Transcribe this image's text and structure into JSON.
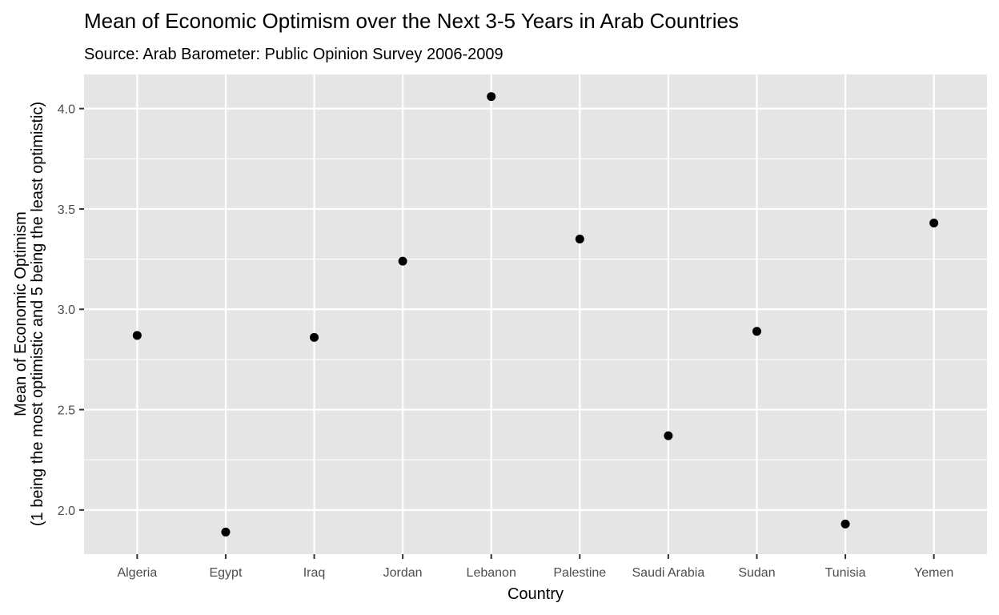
{
  "chart_data": {
    "type": "scatter",
    "title": "Mean of Economic Optimism over the Next 3-5 Years in Arab Countries",
    "subtitle": "Source: Arab Barometer: Public Opinion Survey 2006-2009",
    "xlabel": "Country",
    "ylabel_line1": "Mean of Economic Optimism",
    "ylabel_line2": "(1 being the most optimistic and 5 being the least optimistic)",
    "categories": [
      "Algeria",
      "Egypt",
      "Iraq",
      "Jordan",
      "Lebanon",
      "Palestine",
      "Saudi Arabia",
      "Sudan",
      "Tunisia",
      "Yemen"
    ],
    "values": [
      2.87,
      1.89,
      2.86,
      3.24,
      4.06,
      3.35,
      2.37,
      2.89,
      1.93,
      3.43
    ],
    "yticks": [
      "2.0",
      "2.5",
      "3.0",
      "3.5",
      "4.0"
    ],
    "ylim": [
      1.78,
      4.17
    ],
    "grid": true,
    "colors": {
      "panel": "#e5e5e5",
      "grid": "#ffffff",
      "point": "#000000"
    }
  }
}
